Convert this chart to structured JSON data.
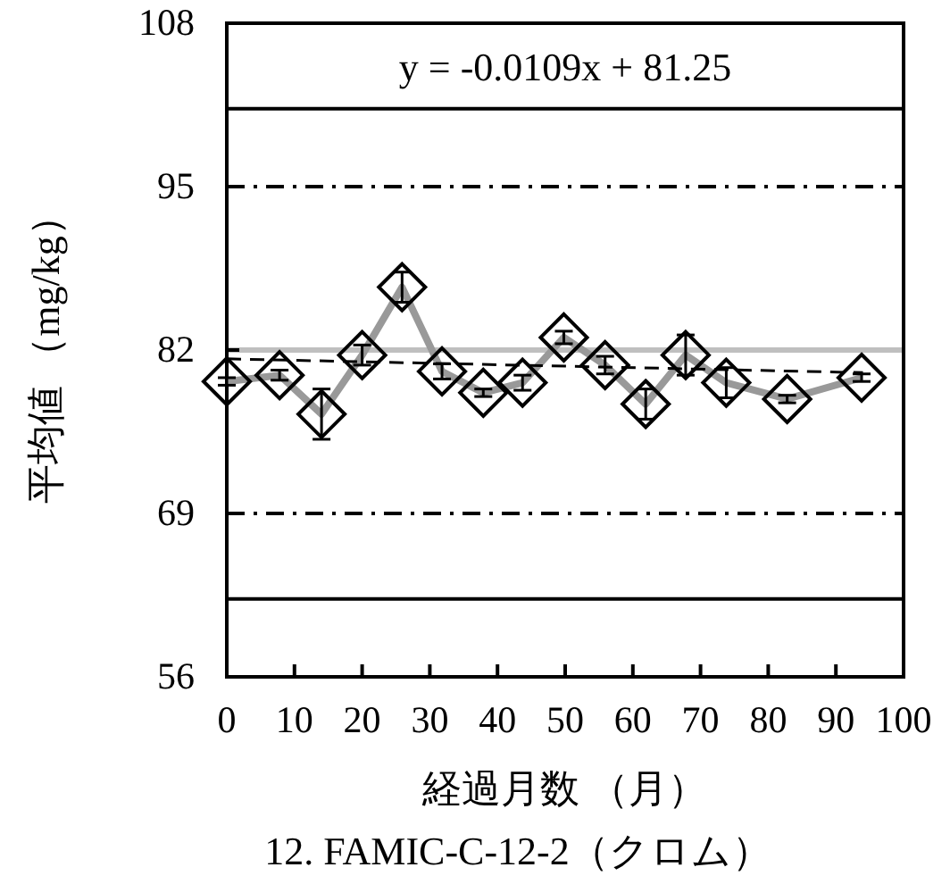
{
  "chart_data": {
    "type": "line",
    "title": "12. FAMIC-C-12-2（クロム）",
    "xlabel": "経過月数 （月）",
    "ylabel": "平均値 （mg/kg）",
    "annotations": [
      "y = -0.0109x + 81.25"
    ],
    "xlim": [
      0,
      100
    ],
    "xticks": [
      0,
      10,
      20,
      30,
      40,
      50,
      60,
      70,
      80,
      90,
      100
    ],
    "ylim": [
      56,
      108
    ],
    "yticks": [
      56,
      69,
      82,
      95,
      108
    ],
    "grid": false,
    "series": [
      {
        "color": "#999999",
        "marker": "diamond",
        "line_style": "solid",
        "x": [
          0,
          7.8,
          14,
          20,
          25.9,
          31.8,
          37.9,
          43.7,
          49.8,
          55.9,
          61.9,
          67.8,
          73.8,
          82.8,
          93.8
        ],
        "values": [
          79.5,
          80.0,
          76.9,
          81.6,
          87.0,
          80.3,
          78.6,
          79.4,
          83.0,
          80.8,
          77.7,
          81.6,
          79.4,
          78.1,
          79.8
        ],
        "errors": [
          0.3,
          0.4,
          2.0,
          0.8,
          1.2,
          0.6,
          0.3,
          0.6,
          0.5,
          0.7,
          1.2,
          1.6,
          1.2,
          0.3,
          0.3
        ]
      },
      {
        "type": "line",
        "color": "#000000",
        "marker": "none",
        "line_style": "dashed",
        "x": [
          0,
          94
        ],
        "values": [
          81.3,
          80.2
        ]
      }
    ],
    "ref_lines": [
      {
        "axis": "y",
        "value": 101.2,
        "color": "#000000",
        "line_style": "solid"
      },
      {
        "axis": "y",
        "value": 95,
        "color": "#000000",
        "line_style": "dashdot"
      },
      {
        "axis": "y",
        "value": 82,
        "color": "#bfbfbf",
        "line_style": "solid"
      },
      {
        "axis": "y",
        "value": 69,
        "color": "#000000",
        "line_style": "dashdot"
      },
      {
        "axis": "y",
        "value": 62.2,
        "color": "#000000",
        "line_style": "solid"
      }
    ]
  }
}
